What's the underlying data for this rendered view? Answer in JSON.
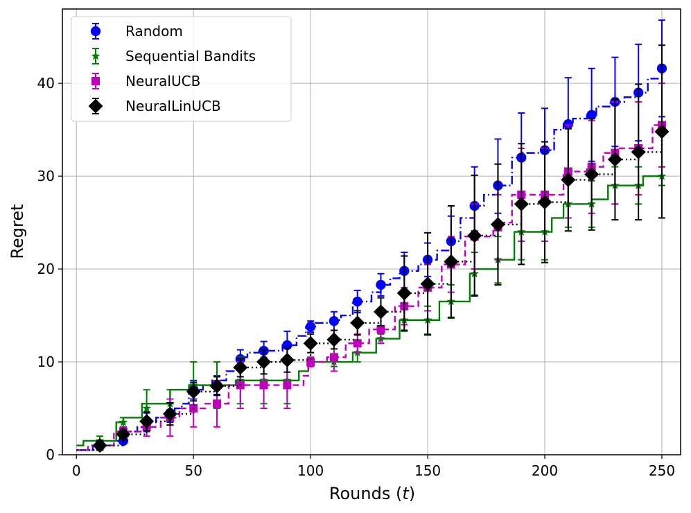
{
  "chart_data": {
    "type": "line",
    "xlabel": "Rounds (t)",
    "ylabel": "Regret",
    "xlim": [
      -6,
      258
    ],
    "ylim": [
      0,
      48
    ],
    "xticks": [
      0,
      50,
      100,
      150,
      200,
      250
    ],
    "yticks": [
      0,
      10,
      20,
      30,
      40
    ],
    "grid": true,
    "legend_position": "top-left",
    "marker_x": [
      10,
      20,
      30,
      40,
      50,
      60,
      70,
      80,
      90,
      100,
      110,
      120,
      130,
      140,
      150,
      160,
      170,
      180,
      190,
      200,
      210,
      220,
      230,
      240,
      250
    ],
    "series": [
      {
        "name": "Random",
        "color": "#0000ff",
        "linestyle": "dashdot",
        "marker": "circle",
        "steps": [
          [
            0,
            0.5
          ],
          [
            4,
            0.5
          ],
          [
            7,
            1.0
          ],
          [
            16,
            1.5
          ],
          [
            19,
            2.0
          ],
          [
            22,
            2.5
          ],
          [
            26,
            3.0
          ],
          [
            30,
            3.5
          ],
          [
            34,
            4.0
          ],
          [
            38,
            4.5
          ],
          [
            42,
            5.0
          ],
          [
            45,
            5.5
          ],
          [
            48,
            7.0
          ],
          [
            54,
            7.5
          ],
          [
            58,
            8.0
          ],
          [
            64,
            9.0
          ],
          [
            69,
            10.5
          ],
          [
            73,
            11.0
          ],
          [
            78,
            11.2
          ],
          [
            88,
            11.8
          ],
          [
            94,
            12.8
          ],
          [
            98,
            13.8
          ],
          [
            102,
            14.2
          ],
          [
            110,
            14.5
          ],
          [
            113,
            15.0
          ],
          [
            118,
            16.5
          ],
          [
            126,
            17.5
          ],
          [
            130,
            18.3
          ],
          [
            134,
            19.0
          ],
          [
            138,
            19.8
          ],
          [
            146,
            20.5
          ],
          [
            150,
            21.0
          ],
          [
            154,
            22.0
          ],
          [
            160,
            23.0
          ],
          [
            164,
            25.5
          ],
          [
            170,
            26.8
          ],
          [
            174,
            28.0
          ],
          [
            180,
            29.0
          ],
          [
            186,
            32.0
          ],
          [
            190,
            32.5
          ],
          [
            200,
            32.8
          ],
          [
            204,
            35.0
          ],
          [
            208,
            35.6
          ],
          [
            212,
            36.2
          ],
          [
            218,
            36.6
          ],
          [
            222,
            37.5
          ],
          [
            228,
            38.0
          ],
          [
            234,
            38.5
          ],
          [
            240,
            39.0
          ],
          [
            244,
            40.5
          ],
          [
            250,
            41.6
          ]
        ],
        "points": [
          1.0,
          1.5,
          3.5,
          4.5,
          7.0,
          7.5,
          10.3,
          11.2,
          11.8,
          13.8,
          14.4,
          16.5,
          18.3,
          19.8,
          21.0,
          23.0,
          26.8,
          29.0,
          32.0,
          32.8,
          35.6,
          36.6,
          38.0,
          39.0,
          41.6
        ],
        "err_low": [
          0.5,
          0.3,
          1.0,
          1.0,
          1.0,
          1.0,
          1.0,
          1.0,
          1.5,
          0.6,
          1.0,
          1.2,
          1.2,
          2.0,
          1.8,
          2.7,
          2.7,
          3.0,
          4.8,
          4.5,
          5.0,
          5.0,
          4.8,
          5.2,
          5.2
        ],
        "err_high": [
          0.5,
          0.3,
          1.0,
          1.0,
          1.0,
          1.0,
          1.0,
          1.0,
          1.5,
          0.6,
          1.0,
          1.2,
          1.2,
          2.0,
          1.8,
          2.7,
          4.2,
          5.0,
          4.8,
          4.5,
          5.0,
          5.0,
          4.8,
          5.2,
          5.2
        ]
      },
      {
        "name": "Sequential Bandits",
        "color": "#008000",
        "linestyle": "solid",
        "marker": "star",
        "steps": [
          [
            0,
            1.0
          ],
          [
            3,
            1.5
          ],
          [
            17,
            3.5
          ],
          [
            20,
            4.0
          ],
          [
            24,
            4.0
          ],
          [
            28,
            5.5
          ],
          [
            38,
            5.5
          ],
          [
            40,
            7.0
          ],
          [
            48,
            7.5
          ],
          [
            68,
            8.0
          ],
          [
            95,
            9.0
          ],
          [
            99,
            10.0
          ],
          [
            118,
            11.0
          ],
          [
            128,
            12.5
          ],
          [
            138,
            14.5
          ],
          [
            155,
            16.5
          ],
          [
            168,
            19.5
          ],
          [
            170,
            20.0
          ],
          [
            180,
            21.0
          ],
          [
            187,
            24.0
          ],
          [
            203,
            25.5
          ],
          [
            208,
            27.0
          ],
          [
            220,
            27.5
          ],
          [
            227,
            29.0
          ],
          [
            242,
            30.0
          ]
        ],
        "points": [
          1.5,
          3.5,
          5.0,
          5.5,
          7.5,
          7.5,
          8.0,
          8.0,
          8.0,
          10.0,
          10.0,
          11.0,
          12.5,
          14.5,
          14.5,
          16.5,
          19.5,
          21.0,
          24.0,
          24.0,
          27.0,
          27.0,
          29.0,
          29.0,
          30.0
        ],
        "err_low": [
          0.5,
          0.5,
          2.0,
          1.5,
          2.5,
          2.5,
          2.5,
          2.5,
          2.5,
          0.5,
          0.5,
          1.0,
          0.5,
          1.2,
          1.5,
          1.8,
          2.3,
          2.5,
          3.0,
          3.0,
          2.5,
          2.5,
          2.0,
          2.0,
          1.0
        ],
        "err_high": [
          0.5,
          0.5,
          2.0,
          1.5,
          2.5,
          2.5,
          2.5,
          2.5,
          2.5,
          0.5,
          0.5,
          1.0,
          0.5,
          1.2,
          1.5,
          1.8,
          2.3,
          2.5,
          3.0,
          3.0,
          2.5,
          2.5,
          2.0,
          2.0,
          1.0
        ]
      },
      {
        "name": "NeuralUCB",
        "color": "#bf00bf",
        "linestyle": "dashed",
        "marker": "square",
        "steps": [
          [
            0,
            0.5
          ],
          [
            5,
            1.0
          ],
          [
            16,
            2.5
          ],
          [
            20,
            2.5
          ],
          [
            28,
            3.0
          ],
          [
            36,
            4.0
          ],
          [
            44,
            5.0
          ],
          [
            55,
            5.5
          ],
          [
            65,
            7.5
          ],
          [
            97,
            8.5
          ],
          [
            99,
            10.0
          ],
          [
            107,
            10.5
          ],
          [
            115,
            12.0
          ],
          [
            125,
            13.5
          ],
          [
            136,
            16.0
          ],
          [
            146,
            18.0
          ],
          [
            156,
            20.5
          ],
          [
            166,
            23.5
          ],
          [
            178,
            25.0
          ],
          [
            186,
            28.0
          ],
          [
            208,
            30.5
          ],
          [
            218,
            31.0
          ],
          [
            225,
            32.5
          ],
          [
            230,
            33.0
          ],
          [
            246,
            35.5
          ]
        ],
        "points": [
          1.0,
          2.5,
          3.0,
          4.0,
          5.0,
          5.5,
          7.5,
          7.5,
          7.5,
          10.0,
          10.5,
          12.0,
          13.5,
          16.0,
          18.0,
          20.5,
          23.5,
          24.5,
          28.0,
          28.0,
          30.5,
          31.0,
          32.5,
          33.0,
          35.5
        ],
        "err_low": [
          0.5,
          0.5,
          1.0,
          2.0,
          2.0,
          2.5,
          2.5,
          2.5,
          2.5,
          0.5,
          1.5,
          1.0,
          1.5,
          2.0,
          2.5,
          3.0,
          3.5,
          3.5,
          5.0,
          5.0,
          5.0,
          5.0,
          5.5,
          5.0,
          4.5
        ],
        "err_high": [
          0.5,
          0.5,
          1.0,
          2.0,
          2.0,
          2.5,
          2.5,
          2.5,
          2.5,
          0.5,
          1.5,
          1.0,
          1.5,
          2.0,
          2.5,
          3.0,
          3.5,
          3.5,
          5.0,
          5.0,
          5.0,
          5.0,
          5.5,
          5.0,
          4.5
        ]
      },
      {
        "name": "NeuralLinUCB",
        "color": "#000000",
        "linestyle": "dotted",
        "marker": "diamond",
        "steps": [
          [
            0,
            0.5
          ],
          [
            10,
            1.0
          ],
          [
            20,
            2.2
          ],
          [
            30,
            3.6
          ],
          [
            40,
            4.4
          ],
          [
            50,
            6.8
          ],
          [
            60,
            7.4
          ],
          [
            70,
            9.4
          ],
          [
            80,
            10.0
          ],
          [
            90,
            10.2
          ],
          [
            100,
            12.0
          ],
          [
            110,
            12.4
          ],
          [
            120,
            14.2
          ],
          [
            130,
            15.4
          ],
          [
            140,
            17.4
          ],
          [
            150,
            18.4
          ],
          [
            160,
            20.8
          ],
          [
            170,
            23.6
          ],
          [
            180,
            24.8
          ],
          [
            190,
            27.0
          ],
          [
            200,
            27.2
          ],
          [
            210,
            29.6
          ],
          [
            220,
            30.2
          ],
          [
            230,
            31.8
          ],
          [
            240,
            32.6
          ],
          [
            250,
            34.8
          ]
        ],
        "points": [
          1.0,
          2.2,
          3.6,
          4.4,
          6.8,
          7.4,
          9.4,
          10.0,
          10.2,
          12.0,
          12.4,
          14.2,
          15.4,
          17.4,
          18.4,
          20.8,
          23.6,
          24.8,
          27.0,
          27.2,
          29.6,
          30.2,
          31.8,
          32.6,
          34.8
        ],
        "err_low": [
          0.5,
          0.5,
          1.0,
          1.2,
          1.0,
          1.0,
          1.0,
          1.3,
          1.3,
          1.0,
          1.0,
          1.3,
          1.5,
          4.0,
          5.5,
          6.0,
          6.5,
          6.5,
          6.5,
          6.5,
          5.5,
          6.0,
          6.5,
          7.3,
          9.3
        ],
        "err_high": [
          0.5,
          0.5,
          1.0,
          1.2,
          1.0,
          1.0,
          1.0,
          1.3,
          1.3,
          1.0,
          1.0,
          1.3,
          1.5,
          4.0,
          5.5,
          6.0,
          6.5,
          6.5,
          6.5,
          6.5,
          5.5,
          6.0,
          6.5,
          7.3,
          9.3
        ]
      }
    ]
  }
}
